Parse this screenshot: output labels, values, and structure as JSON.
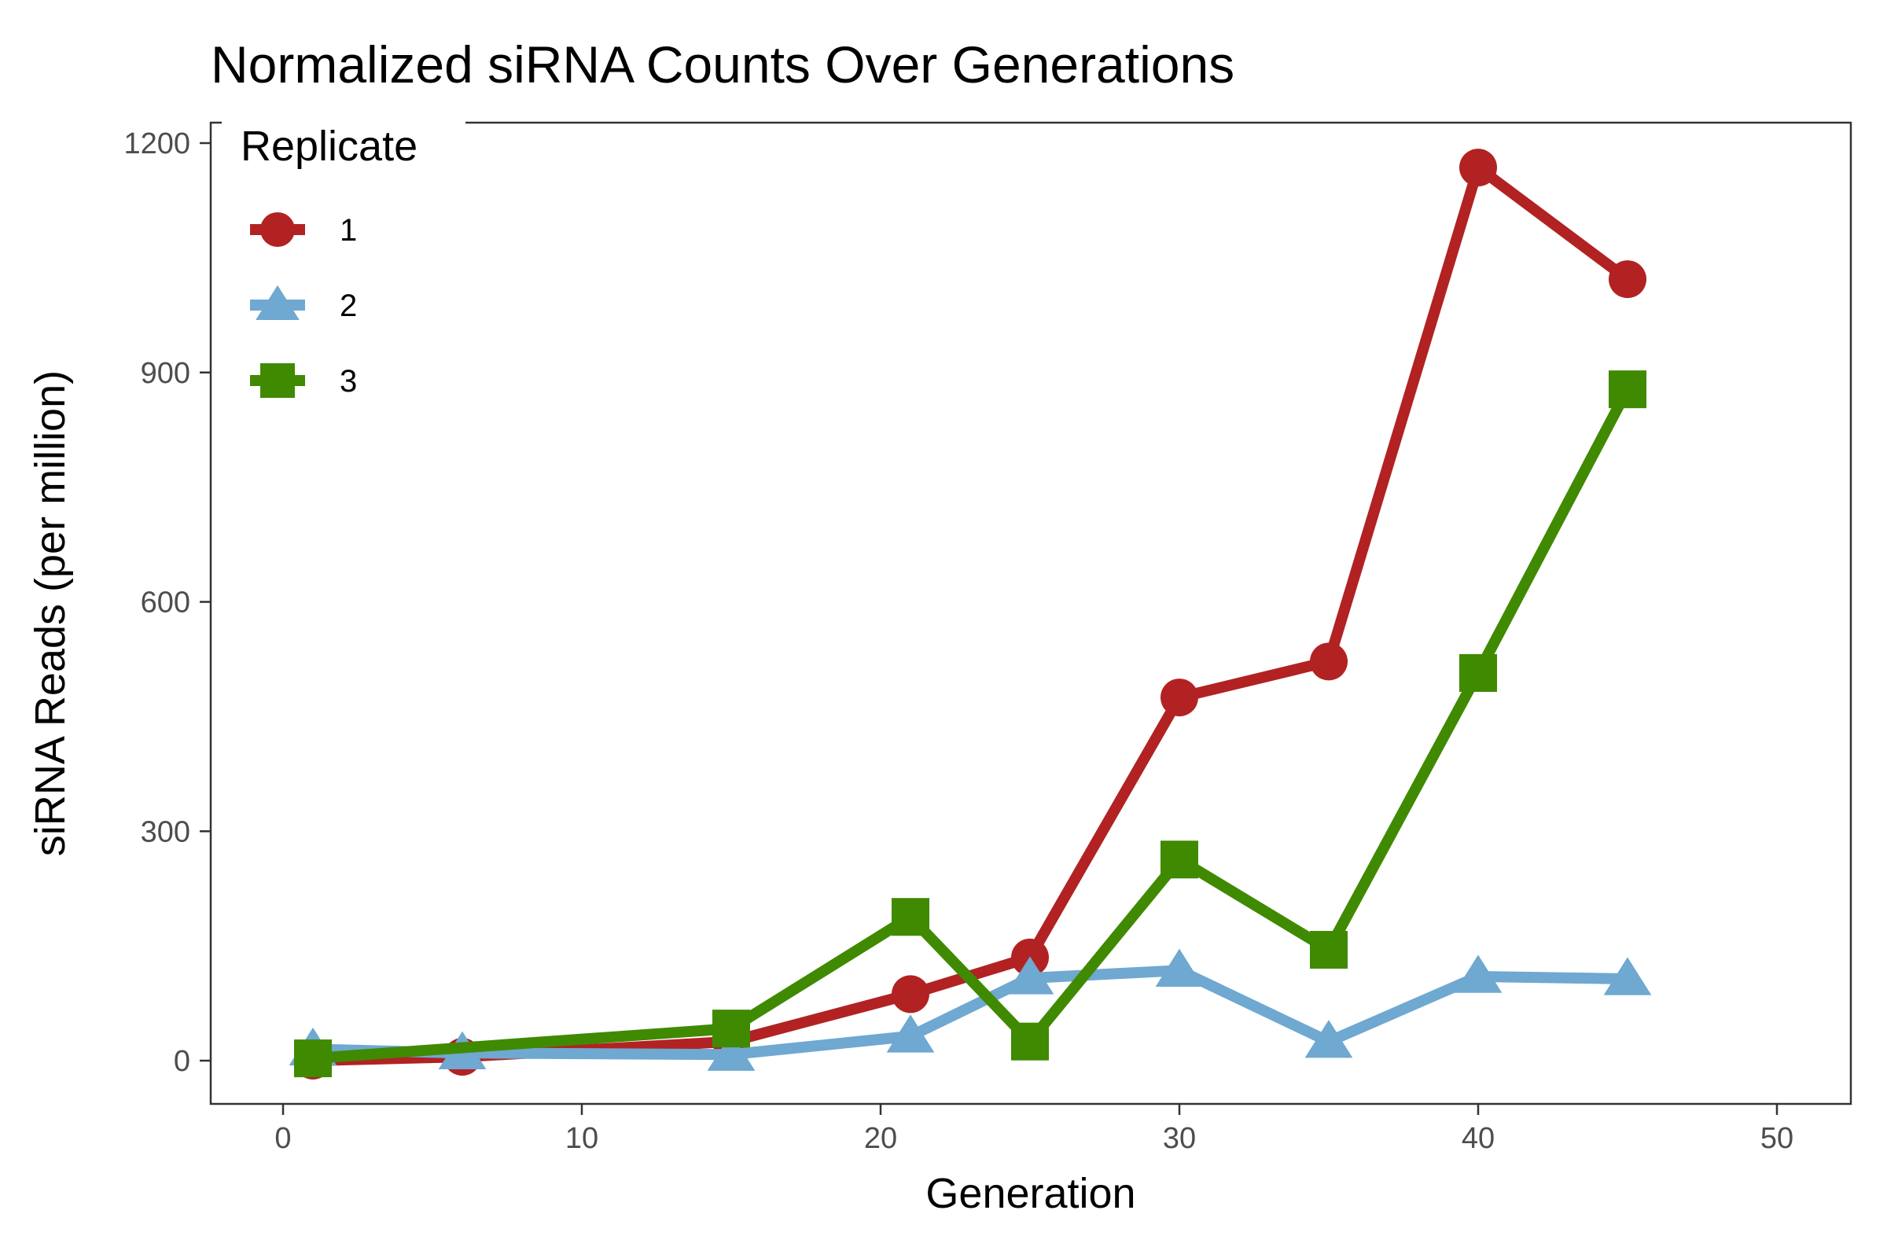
{
  "chart_data": {
    "type": "line",
    "title": "Normalized siRNA Counts Over Generations",
    "xlabel": "Generation",
    "ylabel": "siRNA Reads (per million)",
    "xlim": [
      0,
      50
    ],
    "ylim": [
      0,
      1200
    ],
    "x_ticks": [
      0,
      10,
      20,
      30,
      40,
      50
    ],
    "y_ticks": [
      0,
      300,
      600,
      900,
      1200
    ],
    "grid": false,
    "legend": {
      "title": "Replicate",
      "placement": "top-left"
    },
    "series": [
      {
        "name": "1",
        "color": "#b22222",
        "marker": "circle",
        "x": [
          1,
          6,
          15,
          21,
          25,
          30,
          35,
          40,
          45
        ],
        "y": [
          0,
          5,
          25,
          87,
          135,
          475,
          522,
          1168,
          1022
        ]
      },
      {
        "name": "2",
        "color": "#6fa8d0",
        "marker": "triangle",
        "x": [
          1,
          6,
          15,
          21,
          25,
          30,
          35,
          40,
          45
        ],
        "y": [
          15,
          10,
          8,
          32,
          108,
          118,
          25,
          110,
          107
        ]
      },
      {
        "name": "3",
        "color": "#3f8a00",
        "marker": "square",
        "x": [
          1,
          15,
          21,
          25,
          30,
          35,
          40,
          45
        ],
        "y": [
          3,
          42,
          188,
          25,
          263,
          145,
          507,
          878
        ]
      }
    ]
  }
}
